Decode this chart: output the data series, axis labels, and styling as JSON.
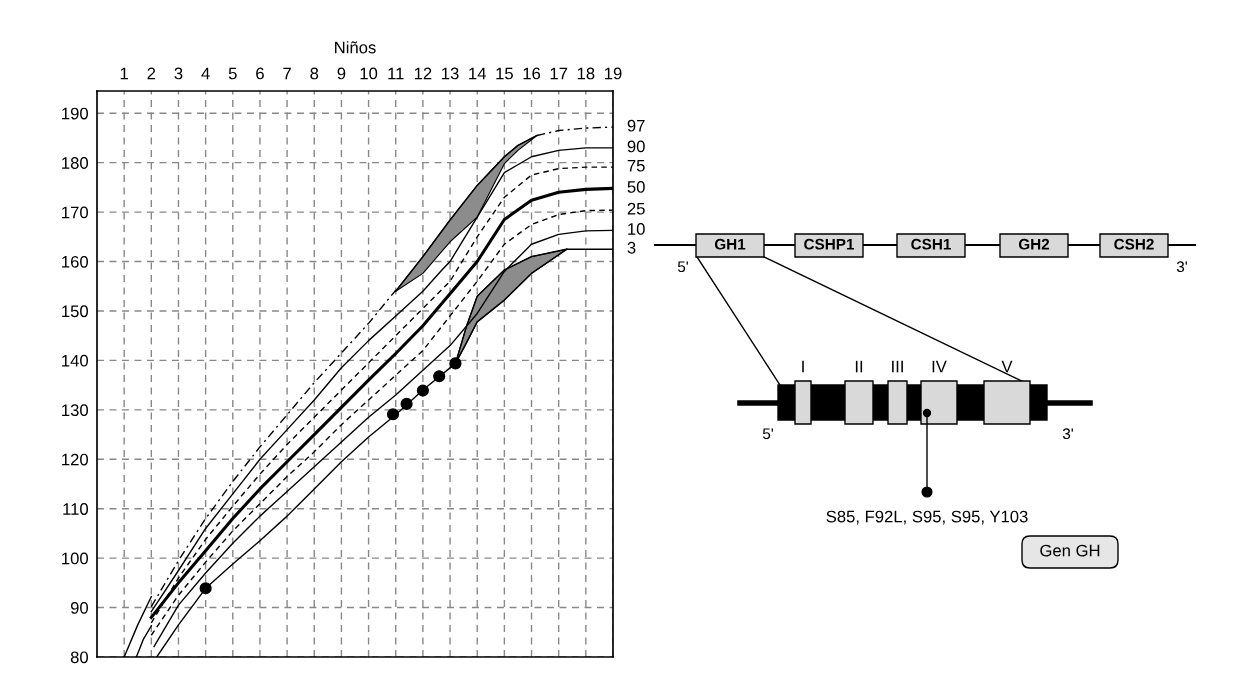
{
  "chart_data": [
    {
      "type": "line",
      "xlabel": "Niños",
      "xlim": [
        0,
        19
      ],
      "ylim": [
        80,
        194.5
      ],
      "xticks": [
        1,
        2,
        3,
        4,
        5,
        6,
        7,
        8,
        9,
        10,
        11,
        12,
        13,
        14,
        15,
        16,
        17,
        18,
        19
      ],
      "yticks": [
        80,
        90,
        100,
        110,
        120,
        130,
        140,
        150,
        160,
        170,
        180,
        190
      ],
      "grid": true,
      "legend": false,
      "series": [
        {
          "name": "97",
          "color": "#000000",
          "line_style": "dashdot",
          "x": [
            2,
            3,
            4,
            5,
            6,
            7,
            8,
            9,
            10,
            11,
            12,
            16.2,
            17,
            18,
            19
          ],
          "values": [
            90.2,
            99.5,
            108,
            115.5,
            122.5,
            129,
            135.5,
            141.5,
            147.5,
            154.2,
            null,
            185.5,
            186.5,
            187,
            187.2
          ]
        },
        {
          "name": "90",
          "color": "#000000",
          "line_style": "solid",
          "x": [
            2,
            3,
            4,
            5,
            6,
            7,
            8,
            9,
            10,
            11,
            12,
            12.7,
            13,
            14,
            15,
            16,
            17,
            18,
            19
          ],
          "values": [
            89.2,
            97.5,
            106,
            113,
            120,
            126,
            132,
            138.5,
            144,
            149,
            154,
            158.3,
            160,
            169,
            178,
            181.2,
            182.5,
            183,
            183
          ]
        },
        {
          "name": "75",
          "color": "#000000",
          "line_style": "dashed",
          "x": [
            2,
            3,
            4,
            5,
            6,
            7,
            8,
            9,
            10,
            11,
            12,
            13,
            14,
            15,
            16,
            17,
            18,
            19
          ],
          "values": [
            86.9,
            96,
            103.8,
            110.5,
            117,
            123,
            128.5,
            134,
            139.5,
            145,
            150.5,
            156,
            165,
            173,
            177.5,
            178.8,
            179.1,
            179.1
          ]
        },
        {
          "name": "50",
          "color": "#000000",
          "line_style": "solid",
          "x": [
            2,
            3,
            4,
            5,
            6,
            7,
            8,
            9,
            10,
            11,
            12,
            13,
            14,
            15,
            16,
            17,
            18,
            19
          ],
          "values": [
            88,
            95,
            101.5,
            108,
            114,
            119.5,
            125,
            130.5,
            136,
            141.4,
            147,
            153.5,
            160,
            168.5,
            172.4,
            174,
            174.6,
            174.8
          ]
        },
        {
          "name": "25",
          "color": "#000000",
          "line_style": "dashed",
          "x": [
            2,
            3,
            4,
            5,
            6,
            7,
            8,
            9,
            10,
            11,
            12,
            13,
            14,
            15,
            16,
            17,
            18,
            19
          ],
          "values": [
            84.4,
            92.5,
            99.2,
            105.5,
            111,
            116.5,
            121.5,
            127,
            132,
            137,
            142,
            149,
            156,
            163.5,
            167.5,
            169.5,
            170.3,
            170.4
          ]
        },
        {
          "name": "10",
          "color": "#000000",
          "line_style": "solid",
          "x": [
            2.1,
            3,
            4,
            5,
            6,
            7,
            8,
            9,
            10,
            11,
            12,
            13,
            14,
            15,
            16,
            17,
            18,
            19
          ],
          "values": [
            82.1,
            90.5,
            97,
            103,
            108.5,
            113.5,
            118.5,
            123.5,
            128.5,
            133,
            138,
            143,
            149.5,
            158,
            163.5,
            165.5,
            166.2,
            166.3
          ]
        },
        {
          "name": "3",
          "color": "#000000",
          "line_style": "solid",
          "x": [
            2.2,
            3,
            4,
            5,
            6,
            7,
            8,
            9,
            10,
            11,
            12,
            13.2,
            13.6,
            14,
            15,
            16,
            17.3,
            19
          ],
          "values": [
            80,
            86.5,
            93.9,
            98.8,
            103.5,
            108.5,
            114,
            119.5,
            124.5,
            129,
            134,
            139.4,
            143.5,
            147.8,
            152.2,
            157.6,
            162.5,
            162.5
          ]
        },
        {
          "color": "#000000",
          "line_style": "solid",
          "x": [
            1,
            1.5,
            2
          ],
          "values": [
            80,
            86.5,
            92.2
          ]
        },
        {
          "color": "#000000",
          "line_style": "solid",
          "x": [
            1.45,
            1.7,
            2
          ],
          "values": [
            80,
            83.5,
            86.3
          ]
        },
        {
          "type": "line",
          "color": "#000000",
          "line_style": "solid",
          "x": [
            11,
            12,
            13,
            14,
            15,
            15.5,
            16.2
          ],
          "values": [
            154,
            161,
            168.4,
            175.4,
            181.2,
            183.5,
            185.5
          ],
          "upper": [
            154,
            161,
            168.4,
            175.4,
            181.2,
            183.5,
            185.5
          ],
          "lower": [
            154,
            157.6,
            164,
            169,
            179.8,
            182.5,
            185.5
          ]
        },
        {
          "type": "line",
          "color": "#000000",
          "line_style": "solid",
          "x": [
            13.2,
            13.6,
            14,
            15,
            16,
            17.3
          ],
          "values": [
            139.4,
            146.8,
            153,
            158.3,
            161,
            162.5
          ],
          "upper": [
            139.4,
            146.8,
            153,
            158.3,
            161,
            162.5
          ],
          "lower": [
            139.4,
            143.5,
            147.8,
            152.2,
            157.6,
            162.5
          ]
        },
        {
          "type": "scatter",
          "color": "#000000",
          "marker": "circle",
          "x": [
            4,
            10.9,
            11.4,
            12,
            12.6,
            13.2
          ],
          "values": [
            93.9,
            129.1,
            131.2,
            133.9,
            136.8,
            139.4
          ]
        }
      ]
    },
    {
      "type": "other",
      "categories": [
        "GH1",
        "CSHP1",
        "CSH1",
        "GH2",
        "CSH2"
      ],
      "annotations": [
        "5'",
        "3'",
        "I",
        "II",
        "III",
        "IV",
        "V",
        "5'",
        "3'",
        "S85, F92L, S95, S95, Y103",
        "Gen GH"
      ]
    }
  ]
}
